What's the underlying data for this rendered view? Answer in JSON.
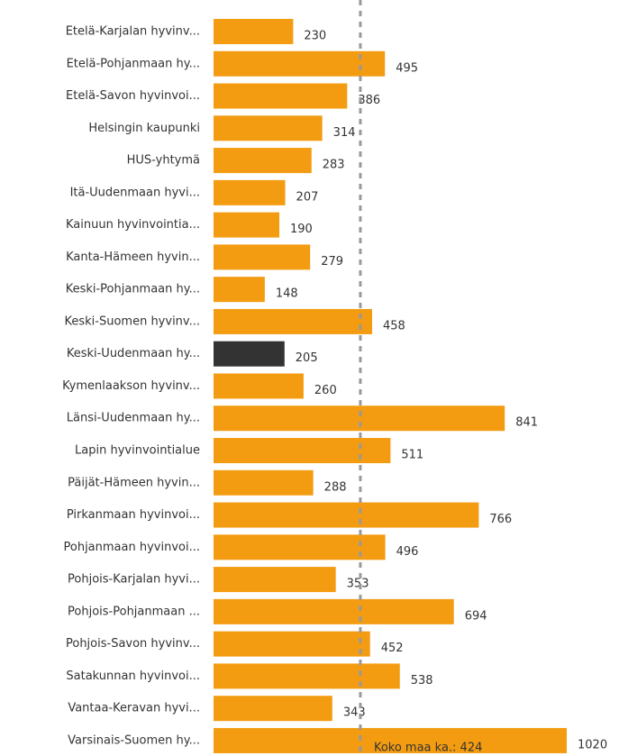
{
  "chart_data": {
    "type": "bar",
    "orientation": "horizontal",
    "categories": [
      "Etelä-Karjalan hyvinv...",
      "Etelä-Pohjanmaan hy...",
      "Etelä-Savon hyvinvoi...",
      "Helsingin kaupunki",
      "HUS-yhtymä",
      "Itä-Uudenmaan hyvi...",
      "Kainuun hyvinvointia...",
      "Kanta-Hämeen hyvin...",
      "Keski-Pohjanmaan hy...",
      "Keski-Suomen hyvinv...",
      "Keski-Uudenmaan hy...",
      "Kymenlaakson hyvinv...",
      "Länsi-Uudenmaan hy...",
      "Lapin hyvinvointialue",
      "Päijät-Hämeen hyvin...",
      "Pirkanmaan hyvinvoi...",
      "Pohjanmaan hyvinvoi...",
      "Pohjois-Karjalan hyvi...",
      "Pohjois-Pohjanmaan ...",
      "Pohjois-Savon hyvinv...",
      "Satakunnan hyvinvoi...",
      "Vantaa-Keravan hyvi...",
      "Varsinais-Suomen hy..."
    ],
    "values": [
      230,
      495,
      386,
      314,
      283,
      207,
      190,
      279,
      148,
      458,
      205,
      260,
      841,
      511,
      288,
      766,
      496,
      353,
      694,
      452,
      538,
      343,
      1020
    ],
    "colors": [
      "#F39C12",
      "#F39C12",
      "#F39C12",
      "#F39C12",
      "#F39C12",
      "#F39C12",
      "#F39C12",
      "#F39C12",
      "#F39C12",
      "#F39C12",
      "#333333",
      "#F39C12",
      "#F39C12",
      "#F39C12",
      "#F39C12",
      "#F39C12",
      "#F39C12",
      "#F39C12",
      "#F39C12",
      "#F39C12",
      "#F39C12",
      "#F39C12",
      "#F39C12"
    ],
    "reference_line": {
      "value": 424,
      "label": "Koko maa ka.: 424"
    }
  }
}
